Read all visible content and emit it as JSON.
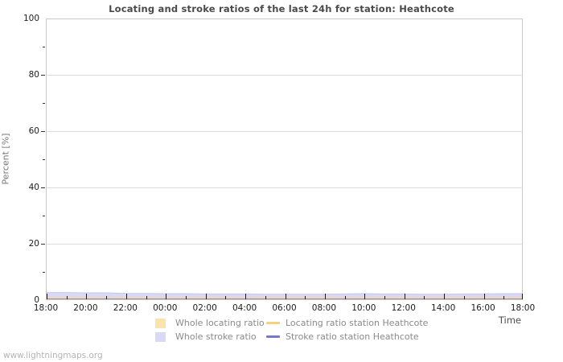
{
  "footer": {
    "watermark": "www.lightningmaps.org"
  },
  "axis_titles": {
    "y": "Percent  [%]",
    "x": "Time"
  },
  "legend": {
    "items": [
      {
        "label": "Whole locating ratio",
        "swatch": "fill",
        "color": "#fbe3ae"
      },
      {
        "label": "Whole stroke ratio",
        "swatch": "fill",
        "color": "#d9d9f6"
      },
      {
        "label": "Locating ratio station Heathcote",
        "swatch": "line",
        "color": "#f3d37e"
      },
      {
        "label": "Stroke ratio station Heathcote",
        "swatch": "line",
        "color": "#7878cf"
      }
    ]
  },
  "theme": {
    "grid_color": "#dcdcdc",
    "border_color": "#c8c8c8",
    "tick_color": "#1a1a1a",
    "title_color": "#4a4a4a"
  },
  "chart_data": {
    "type": "area",
    "title": "Locating and stroke ratios of the last 24h for station: Heathcote",
    "xlabel": "Time",
    "ylabel": "Percent  [%]",
    "ylim": [
      0,
      100
    ],
    "yticks_major": [
      0,
      20,
      40,
      60,
      80,
      100
    ],
    "yticks_minor": [
      10,
      30,
      50,
      70,
      90
    ],
    "x_hours_span": 24,
    "xtick_labels": [
      "18:00",
      "20:00",
      "22:00",
      "00:00",
      "02:00",
      "04:00",
      "06:00",
      "08:00",
      "10:00",
      "12:00",
      "14:00",
      "16:00",
      "18:00"
    ],
    "grid": "horizontal-major",
    "legend_position": "bottom",
    "series": [
      {
        "name": "Whole stroke ratio",
        "type": "area",
        "fill": "#d9d9f6",
        "stroke": "#c6c6ef",
        "values": [
          2.4,
          2.4,
          2.3,
          2.3,
          2.1,
          2.1,
          2.0,
          2.0,
          1.9,
          1.9,
          1.9,
          1.8,
          1.8,
          1.8,
          1.8,
          1.9,
          2.0,
          1.9,
          1.9,
          1.8,
          1.8,
          1.9,
          1.9,
          2.0,
          2.0
        ]
      },
      {
        "name": "Whole locating ratio",
        "type": "area",
        "fill": "#fbe3ae",
        "stroke": "#f3d593",
        "values": [
          0.6,
          0.6,
          0.6,
          0.5,
          0.6,
          0.6,
          0.5,
          0.6,
          0.6,
          0.6,
          0.5,
          0.6,
          0.6,
          0.6,
          0.6,
          0.5,
          0.6,
          0.6,
          0.6,
          0.5,
          0.6,
          0.6,
          0.6,
          0.6,
          0.6
        ]
      },
      {
        "name": "Locating ratio station Heathcote",
        "type": "line",
        "stroke": "#f3d37e",
        "values": [
          0,
          0,
          0,
          0,
          0,
          0,
          0,
          0,
          0,
          0,
          0,
          0,
          0,
          0,
          0,
          0,
          0,
          0,
          0,
          0,
          0,
          0,
          0,
          0,
          0
        ]
      },
      {
        "name": "Stroke ratio station Heathcote",
        "type": "line",
        "stroke": "#7878cf",
        "values": [
          0,
          0,
          0,
          0,
          0,
          0,
          0,
          0,
          0,
          0,
          0,
          0,
          0,
          0,
          0,
          0,
          0,
          0,
          0,
          0,
          0,
          0,
          0,
          0,
          0
        ]
      }
    ]
  }
}
